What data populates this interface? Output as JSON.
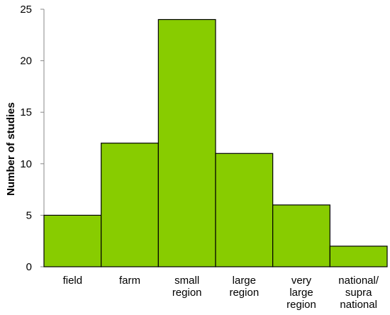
{
  "chart_data": {
    "type": "bar",
    "title": "",
    "xlabel": "",
    "ylabel": "Number of studies",
    "ylim": [
      0,
      25
    ],
    "yticks": [
      0,
      5,
      10,
      15,
      20,
      25
    ],
    "grid": false,
    "bar_color": "#88cc00",
    "bar_edge_color": "#000000",
    "categories": [
      [
        "field"
      ],
      [
        "farm"
      ],
      [
        "small",
        "region"
      ],
      [
        "large",
        "region"
      ],
      [
        "very",
        "large",
        "region"
      ],
      [
        "national/",
        "supra",
        "national"
      ]
    ],
    "values": [
      5,
      12,
      24,
      11,
      6,
      2
    ]
  }
}
